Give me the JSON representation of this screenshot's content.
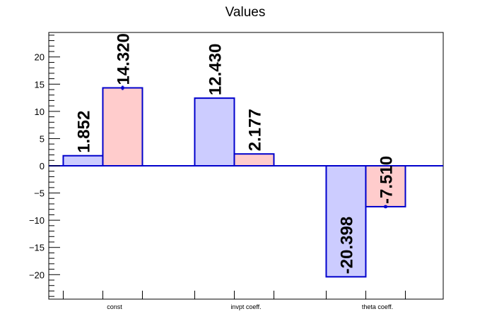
{
  "chart_data": {
    "type": "bar",
    "title": "Values",
    "xlabel": "",
    "ylabel": "",
    "categories": [
      "const",
      "invpt coeff.",
      "theta coeff."
    ],
    "series": [
      {
        "values": [
          1.852,
          12.43,
          -20.398
        ],
        "errors": [
          0,
          0,
          0
        ],
        "color": "#ccccff",
        "edge_color": "#0000cc"
      },
      {
        "values": [
          14.32,
          2.177,
          -7.51
        ],
        "errors": [
          0.4,
          0,
          0.3
        ],
        "color": "#ffcccc",
        "edge_color": "#0000cc"
      }
    ],
    "value_labels": [
      [
        "1.852",
        "12.430",
        "-20.398"
      ],
      [
        "14.320",
        "2.177",
        "-7.510"
      ]
    ],
    "ylim": [
      -24.5,
      24.5
    ],
    "yticks": [
      -20,
      -15,
      -10,
      -5,
      0,
      5,
      10,
      15,
      20
    ],
    "ytick_labels": [
      "−20",
      "−15",
      "−10",
      "−5",
      "0",
      "5",
      "10",
      "15",
      "20"
    ],
    "grid": false,
    "legend": "none"
  }
}
